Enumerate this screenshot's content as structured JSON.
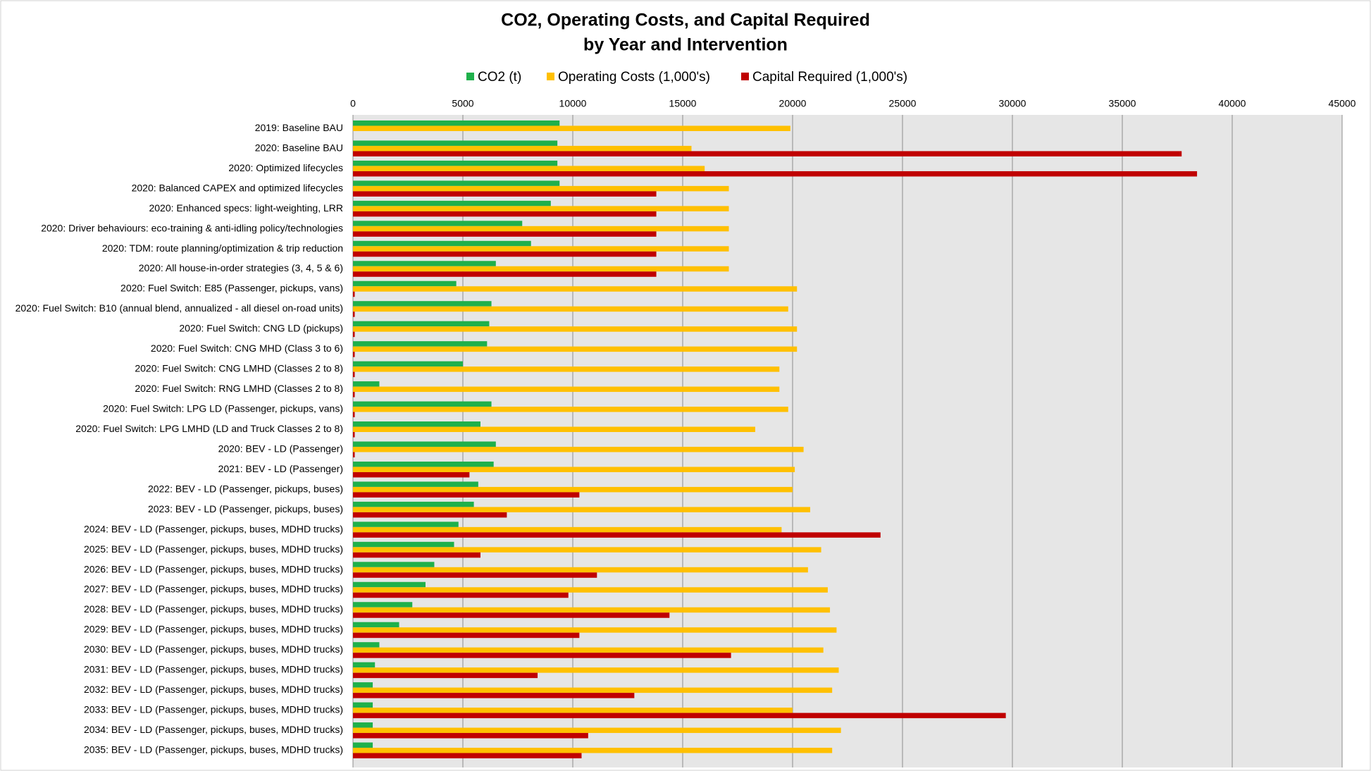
{
  "chart_data": {
    "type": "bar",
    "orientation": "horizontal",
    "title": [
      "CO2, Operating Costs, and Capital Required",
      "by Year and Intervention"
    ],
    "categories": [
      "2019: Baseline BAU",
      "2020: Baseline BAU",
      "2020: Optimized lifecycles",
      "2020: Balanced CAPEX and optimized lifecycles",
      "2020: Enhanced specs: light-weighting, LRR",
      "2020: Driver behaviours: eco-training & anti-idling policy/technologies",
      "2020: TDM: route planning/optimization & trip reduction",
      "2020: All house-in-order strategies (3, 4, 5 & 6)",
      "2020: Fuel Switch: E85 (Passenger, pickups, vans)",
      "2020: Fuel Switch: B10 (annual blend, annualized - all diesel on-road units)",
      "2020: Fuel Switch: CNG LD (pickups)",
      "2020: Fuel Switch: CNG MHD (Class 3 to 6)",
      "2020: Fuel Switch: CNG LMHD (Classes 2 to 8)",
      "2020: Fuel Switch: RNG LMHD (Classes 2 to 8)",
      "2020: Fuel Switch: LPG LD (Passenger, pickups, vans)",
      "2020: Fuel Switch: LPG LMHD (LD and Truck Classes 2 to 8)",
      "2020: BEV - LD (Passenger)",
      "2021: BEV - LD (Passenger)",
      "2022: BEV - LD (Passenger, pickups, buses)",
      "2023: BEV - LD (Passenger, pickups, buses)",
      "2024: BEV - LD (Passenger, pickups, buses, MDHD trucks)",
      "2025: BEV - LD (Passenger, pickups, buses, MDHD trucks)",
      "2026: BEV - LD (Passenger, pickups, buses, MDHD trucks)",
      "2027: BEV - LD (Passenger, pickups, buses, MDHD trucks)",
      "2028: BEV - LD (Passenger, pickups, buses, MDHD trucks)",
      "2029: BEV - LD (Passenger, pickups, buses, MDHD trucks)",
      "2030: BEV - LD (Passenger, pickups, buses, MDHD trucks)",
      "2031: BEV - LD (Passenger, pickups, buses, MDHD trucks)",
      "2032: BEV - LD (Passenger, pickups, buses, MDHD trucks)",
      "2033: BEV - LD (Passenger, pickups, buses, MDHD trucks)",
      "2034: BEV - LD (Passenger, pickups, buses, MDHD trucks)",
      "2035: BEV - LD (Passenger, pickups, buses, MDHD trucks)"
    ],
    "series": [
      {
        "name": "CO2 (t)",
        "color": "#1fb04b",
        "values": [
          9400,
          9300,
          9300,
          9400,
          9000,
          7700,
          8100,
          6500,
          4700,
          6300,
          6200,
          6100,
          5000,
          1200,
          6300,
          5800,
          6500,
          6400,
          5700,
          5500,
          4800,
          4600,
          3700,
          3300,
          2700,
          2100,
          1200,
          1000,
          900,
          900,
          900,
          900
        ]
      },
      {
        "name": "Operating Costs (1,000's)",
        "color": "#ffc000",
        "values": [
          19900,
          15400,
          16000,
          17100,
          17100,
          17100,
          17100,
          17100,
          20200,
          19800,
          20200,
          20200,
          19400,
          19400,
          19800,
          18300,
          20500,
          20100,
          20000,
          20800,
          19500,
          21300,
          20700,
          21600,
          21700,
          22000,
          21400,
          22100,
          21800,
          20000,
          22200,
          21800
        ]
      },
      {
        "name": "Capital Required (1,000's)",
        "color": "#c00000",
        "values": [
          0,
          37700,
          38400,
          13800,
          13800,
          13800,
          13800,
          13800,
          80,
          80,
          80,
          80,
          80,
          80,
          80,
          80,
          80,
          5300,
          10300,
          7000,
          24000,
          5800,
          11100,
          9800,
          14400,
          10300,
          17200,
          8400,
          12800,
          29700,
          10700,
          10400
        ]
      }
    ],
    "xlim": [
      0,
      45000
    ],
    "xticks": [
      0,
      5000,
      10000,
      15000,
      20000,
      25000,
      30000,
      35000,
      40000,
      45000
    ],
    "grid": true,
    "legend": "top"
  }
}
